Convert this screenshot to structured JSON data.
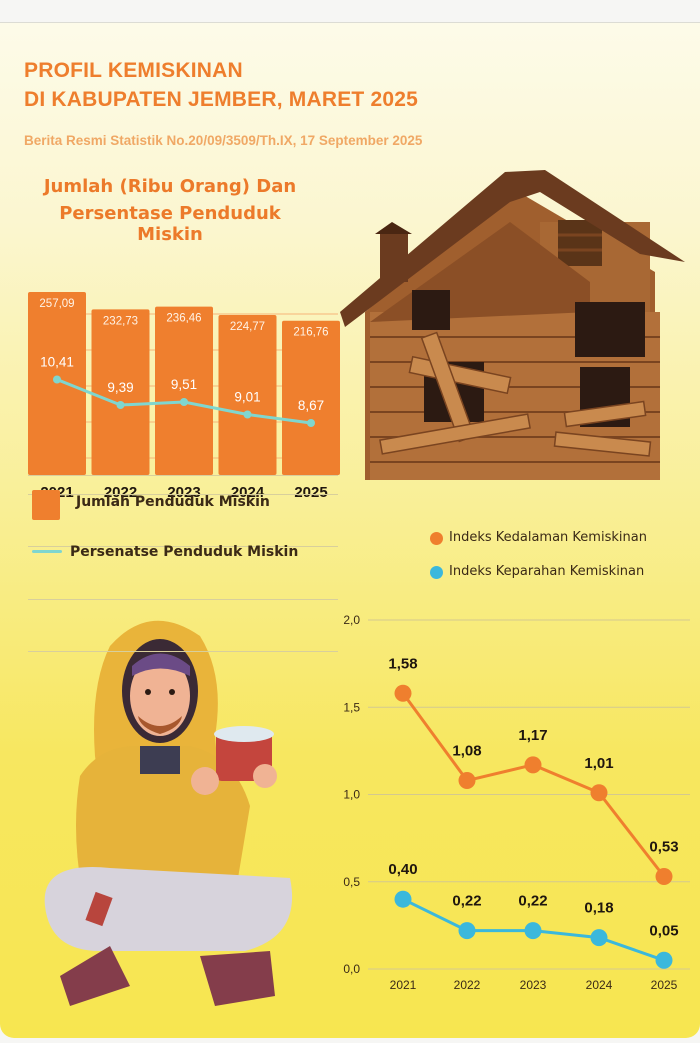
{
  "header": {
    "title_line1": "PROFIL KEMISKINAN",
    "title_line2": "DI KABUPATEN JEMBER, MARET 2025",
    "subtitle": "Berita Resmi Statistik No.20/09/3509/Th.IX, 17 September 2025"
  },
  "chart_data": [
    {
      "type": "bar",
      "title_line1": "Jumlah (Ribu Orang) Dan",
      "title_line2": "Persentase Penduduk Miskin",
      "categories": [
        "2021",
        "2022",
        "2023",
        "2024",
        "2025"
      ],
      "series": [
        {
          "name": "Jumlah Penduduk Miskin",
          "values": [
            257.09,
            232.73,
            236.46,
            224.77,
            216.76
          ],
          "labels": [
            "257,09",
            "232,73",
            "236,46",
            "224,77",
            "216,76"
          ],
          "color": "#ef7f2e"
        },
        {
          "name": "Persenatse Penduduk Miskin",
          "values": [
            10.41,
            9.39,
            9.51,
            9.01,
            8.67
          ],
          "labels": [
            "10,41",
            "9,39",
            "9,51",
            "9,01",
            "8,67"
          ],
          "color": "#7fd6cf"
        }
      ]
    },
    {
      "type": "line",
      "categories": [
        "2021",
        "2022",
        "2023",
        "2024",
        "2025"
      ],
      "ylim": [
        0,
        2
      ],
      "yticks": [
        "0,0",
        "0,5",
        "1,0",
        "1,5",
        "2,0"
      ],
      "grid": true,
      "series": [
        {
          "name": "Indeks Kedalaman Kemiskinan",
          "values": [
            1.58,
            1.08,
            1.17,
            1.01,
            0.53
          ],
          "labels": [
            "1,58",
            "1,08",
            "1,17",
            "1,01",
            "0,53"
          ],
          "color": "#ef7f2e"
        },
        {
          "name": "Indeks Keparahan Kemiskinan",
          "values": [
            0.4,
            0.22,
            0.22,
            0.18,
            0.05
          ],
          "labels": [
            "0,40",
            "0,22",
            "0,22",
            "0,18",
            "0,05"
          ],
          "color": "#3bb8dc"
        }
      ]
    }
  ],
  "illustrations": {
    "house": "dilapidated-wooden-house",
    "person": "person-in-yellow-hoodie-holding-cup"
  }
}
